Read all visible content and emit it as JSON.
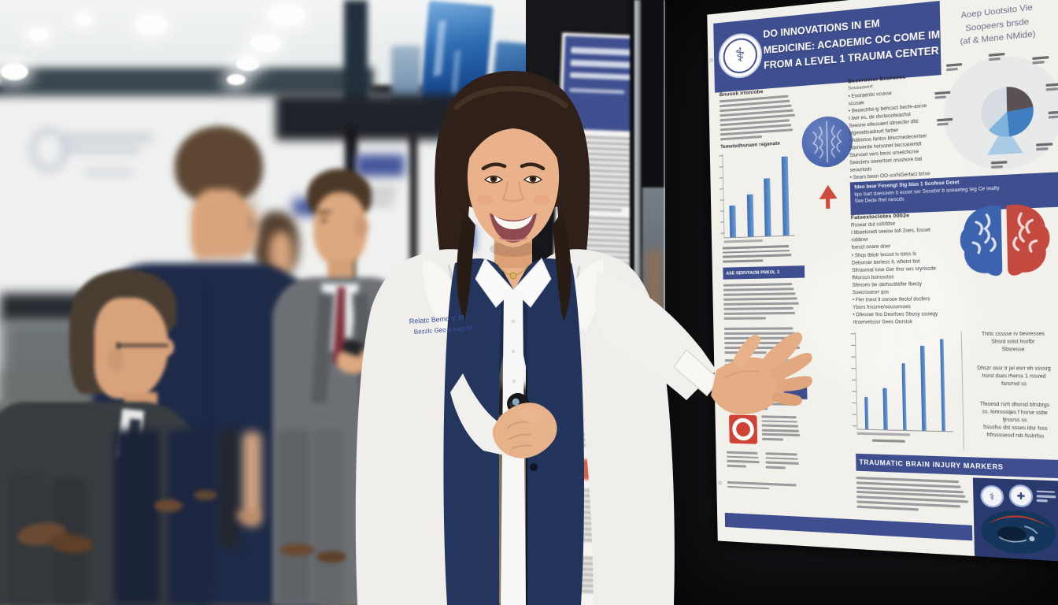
{
  "meta": {
    "description": "Photograph: medical conference poster session; presenter in white coat gesturing at research poster",
    "accent_blue": "#3e4e8e",
    "accent_red": "#cf4337"
  },
  "presenter": {
    "coat_embroidery_line1": "Relatc Bemo s' M",
    "coat_embroidery_line2": "Bezzlc Geo d bagcM",
    "holding": "black presentation clicker"
  },
  "poster_main": {
    "seal_glyph": "⚕",
    "corner_mark": "☤",
    "title": {
      "line1": "DO INNOVATIONS IN EM",
      "line2": "MEDICINE: ACADEMIC OC COME IMM",
      "line3": "FROM A LEVEL 1 TRAUMA CENTER"
    },
    "affiliation": {
      "line1": "Aoep Uootsito Vie",
      "line2": "Soopeers brsde",
      "line3": "(af & Mene NMide)"
    },
    "col1": {
      "heading": "Bnusok irton/obe",
      "subheading": "Temetedhunaen reganate",
      "banner1": "ASE SERVFAOB PRKOL 3",
      "banner2": "ASE BERSAGIA PARTSSSE"
    },
    "col2": {
      "heading": "Beseroetor Exaroesc",
      "subheading": "Sousaseert",
      "bullets": [
        "• Eooraerdo scusse",
        "scusae",
        "• Beoechfst-ly behcact becfe-asrse",
        "I bwr es, de dscteoolwachst",
        "Seesne efeusaert ldrsecfer dfd:",
        "Mgeoebsadourt farber",
        "• Abbshos fantss bhvcmedecerlser",
        "Sbrnverde hotsonet becsaoertdt",
        "Slurvoet vers beoc ursetchcrse",
        "Seecters ooeertset orushore bat",
        "seourtods",
        "• Sears bean OO-sorNGerfact brtse",
        "ssaodes yousrtorneser reveos",
        "seoerluersesrtseet loesses"
      ],
      "mid_banner": {
        "line1": "fdeo bear Fesengt Sig blas 1 Scofese Doiet",
        "line2": "tips bart daesoein b ecoet ser Sesetor b aseaeteg teg Ce tealty",
        "line3": "See Dede fhet nescds"
      },
      "sec2_heading": "Fatoextoclotes 0002e",
      "sec2_lines": [
        "Rssear dut ssfcfdse",
        "I bbaelsnett seeise tofi 2oes, fosset",
        "robbrwr",
        "foesct ooare doer"
      ],
      "sec2_bullets": [
        "• Shqs tbtotr tecsut ls totss ls",
        "Deborser berless lt, wfiotst bot",
        "Sfrrasmat tose Ger thsr ses srynscde",
        "fMorscn bonssctos",
        "Sfesoes be obrhsctht/fer fbecly",
        "Soecrosesrr qos",
        "• Fler tnest lt osrooe tleclol dscfers",
        "Ybsrs fnscrne/ooussrsoes",
        "• Dfesswr fno Desrfoes Sbosy ssoeqy",
        "rtrservetsssr Sees Oorstsk"
      ],
      "tbi_banner": "TRAUMATIC BRAIN INJURY MARKERS"
    },
    "col3": {
      "right_paras": [
        [
          "Thrtc csssse rv bevresses",
          "Shsrd sstst hsvfbr",
          "Sbsresse"
        ],
        [
          "Dhszr ossr tr jel esrr eh ssssrg",
          "hsrst dses rherss 1 rssved",
          "fsrsrrvd ss"
        ],
        [
          "Tfeoesd rsrh dhsrsd bfrsbrgs",
          "ss. loresssqes f hsrse ssbe",
          "fjrssrss ss",
          "Ssssfss dst ssses ldsr fsss",
          "frfrssssessf rsb fsslrrfss"
        ]
      ]
    }
  },
  "chart_data": [
    {
      "type": "bar",
      "location": "poster left column",
      "categories": [
        "",
        "",
        "",
        ""
      ],
      "values": [
        38,
        50,
        68,
        92
      ],
      "bar_color": "#3a6cb3",
      "title": "",
      "xlabel": "",
      "ylabel": "",
      "note": "four ascending blue bars, tick labels illegible"
    },
    {
      "type": "pie",
      "location": "poster top right",
      "slices": [
        {
          "label": "",
          "value": 34,
          "color": "#5a5156"
        },
        {
          "label": "",
          "value": 26,
          "color": "#3f7fc1"
        },
        {
          "label": "",
          "value": 14,
          "color": "#7db3dc"
        },
        {
          "label": "",
          "value": 26,
          "color": "#d7dce2"
        }
      ],
      "note": "small pie inside pale halo circle, callout labels illegible"
    },
    {
      "type": "bar",
      "location": "poster middle column lower",
      "categories": [
        "",
        "",
        "",
        "",
        ""
      ],
      "values": [
        33,
        42,
        68,
        86,
        92
      ],
      "bar_color": "#3a6cb3",
      "title": "",
      "xlabel": "",
      "ylabel": "",
      "note": "five ascending blue bars with left axis ticks"
    }
  ],
  "background": {
    "overhead_displays": 2,
    "projection_screen": "left, blurred with circular logo and text",
    "people_blurred": 6,
    "floor": "patterned conference carpet"
  }
}
